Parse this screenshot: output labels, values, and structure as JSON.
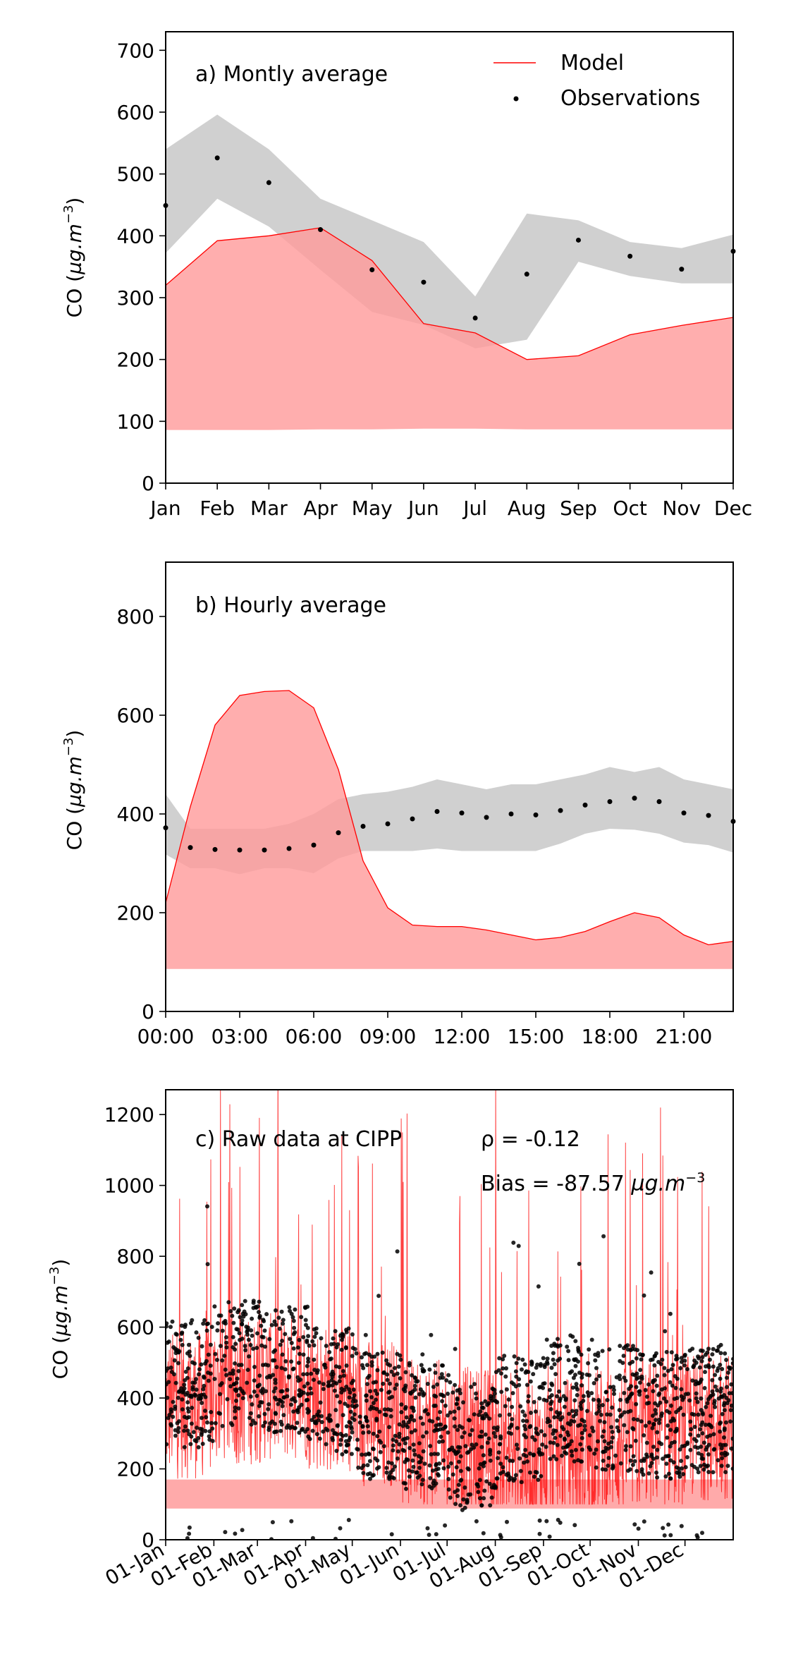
{
  "chart_data": [
    {
      "type": "area",
      "panel_label": "a) Montly average",
      "ylabel": "CO (µg.m⁻³)",
      "ylim": [
        0,
        730
      ],
      "yticks": [
        0,
        100,
        200,
        300,
        400,
        500,
        600,
        700
      ],
      "categories": [
        "Jan",
        "Feb",
        "Mar",
        "Apr",
        "May",
        "Jun",
        "Jul",
        "Aug",
        "Sep",
        "Oct",
        "Nov",
        "Dec"
      ],
      "legend": {
        "position": "top-right",
        "entries": [
          "Model",
          "Observations"
        ]
      },
      "colors": {
        "model": "#ff0000",
        "model_fill": "#ff9a9a",
        "obs_band": "#d0d0d0",
        "obs": "#000000"
      },
      "series": [
        {
          "name": "Model",
          "upper": [
            320,
            392,
            400,
            413,
            360,
            258,
            243,
            200,
            206,
            240,
            255,
            268
          ],
          "lower": [
            86,
            86,
            86,
            87,
            87,
            88,
            88,
            87,
            87,
            87,
            87,
            87
          ]
        },
        {
          "name": "Observations",
          "values": [
            449,
            526,
            486,
            410,
            345,
            325,
            267,
            338,
            393,
            367,
            346,
            375
          ],
          "band_upper": [
            540,
            596,
            540,
            460,
            425,
            390,
            302,
            436,
            425,
            390,
            380,
            402
          ],
          "band_lower": [
            372,
            460,
            415,
            345,
            277,
            256,
            218,
            232,
            358,
            335,
            323,
            323
          ]
        }
      ]
    },
    {
      "type": "area",
      "panel_label": "b) Hourly average",
      "ylabel": "CO (µg.m⁻³)",
      "ylim": [
        0,
        910
      ],
      "yticks": [
        0,
        200,
        400,
        600,
        800
      ],
      "x": [
        0,
        1,
        2,
        3,
        4,
        5,
        6,
        7,
        8,
        9,
        10,
        11,
        12,
        13,
        14,
        15,
        16,
        17,
        18,
        19,
        20,
        21,
        22,
        23
      ],
      "xticks": [
        0,
        3,
        6,
        9,
        12,
        15,
        18,
        21
      ],
      "xticklabels": [
        "00:00",
        "03:00",
        "06:00",
        "09:00",
        "12:00",
        "15:00",
        "18:00",
        "21:00"
      ],
      "colors": {
        "model": "#ff0000",
        "model_fill": "#ff9a9a",
        "obs_band": "#d0d0d0",
        "obs": "#000000"
      },
      "series": [
        {
          "name": "Model",
          "upper": [
            220,
            415,
            580,
            640,
            648,
            650,
            615,
            490,
            305,
            210,
            175,
            172,
            172,
            165,
            155,
            145,
            150,
            162,
            182,
            200,
            190,
            155,
            135,
            142
          ],
          "lower": [
            86,
            86,
            86,
            86,
            86,
            86,
            86,
            86,
            86,
            86,
            86,
            86,
            86,
            86,
            86,
            86,
            86,
            86,
            86,
            86,
            86,
            86,
            86,
            86
          ]
        },
        {
          "name": "Observations",
          "values": [
            372,
            332,
            328,
            327,
            327,
            330,
            337,
            362,
            375,
            380,
            390,
            405,
            402,
            393,
            400,
            398,
            407,
            418,
            425,
            432,
            425,
            402,
            397,
            385
          ],
          "band_upper": [
            440,
            370,
            370,
            370,
            370,
            380,
            400,
            430,
            440,
            445,
            455,
            470,
            460,
            450,
            460,
            460,
            470,
            480,
            495,
            485,
            495,
            470,
            460,
            450
          ],
          "band_lower": [
            318,
            290,
            290,
            278,
            290,
            290,
            280,
            310,
            325,
            325,
            325,
            330,
            325,
            325,
            325,
            325,
            340,
            360,
            370,
            368,
            360,
            342,
            337,
            322
          ]
        }
      ]
    },
    {
      "type": "line",
      "panel_label": "c) Raw data at CIPP",
      "annotations": [
        "ρ = -0.12",
        "Bias = -87.57 µg.m⁻³"
      ],
      "ylabel": "CO (µg.m⁻³)",
      "ylim": [
        0,
        1270
      ],
      "yticks": [
        0,
        200,
        400,
        600,
        800,
        1000,
        1200
      ],
      "xlim_days": [
        0,
        365
      ],
      "xticks_days": [
        0,
        31,
        59,
        90,
        120,
        151,
        181,
        212,
        243,
        273,
        304,
        334
      ],
      "xticklabels": [
        "01-Jan",
        "01-Feb",
        "01-Mar",
        "01-Apr",
        "01-May",
        "01-Jun",
        "01-Jul",
        "01-Aug",
        "01-Sep",
        "01-Oct",
        "01-Nov",
        "01-Dec"
      ],
      "colors": {
        "model": "#ff0000",
        "model_fill": "#ffaaaa",
        "obs": "#000000"
      },
      "series": [
        {
          "name": "Model",
          "description": "hourly model values",
          "monthly_level": [
            380,
            420,
            430,
            400,
            360,
            300,
            280,
            230,
            250,
            280,
            300,
            320
          ]
        },
        {
          "name": "Observations",
          "description": "hourly observations",
          "monthly_level": [
            440,
            500,
            480,
            420,
            350,
            320,
            260,
            340,
            400,
            370,
            350,
            370
          ]
        }
      ]
    }
  ]
}
